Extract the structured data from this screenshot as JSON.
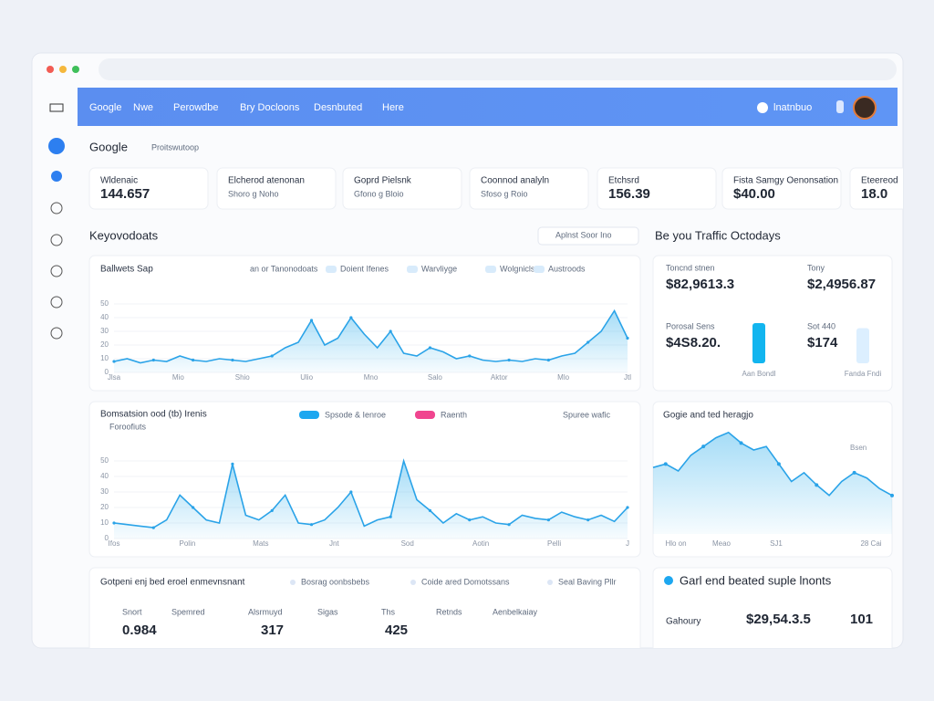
{
  "nav": {
    "brand": "Google",
    "links": [
      "Nwe",
      "Perowdbe",
      "Bry Docloons",
      "Desnbuted",
      "Here"
    ],
    "user": "lnatnbuo"
  },
  "header": {
    "title": "Google",
    "subtitle": "Proitswutoop"
  },
  "kpis": [
    {
      "label": "Wldenaic",
      "value": "144.657"
    },
    {
      "label": "Elcherod atenonan",
      "value": "Shoro g Noho"
    },
    {
      "label": "Goprd Pielsnk",
      "value": "Gfono g Bloio"
    },
    {
      "label": "Coonnod analyln",
      "value": "Sfoso g Roio"
    },
    {
      "label": "Etchsrd",
      "value": "156.39"
    },
    {
      "label": "Fista Samgy Oenonsation",
      "value": "$40.00"
    },
    {
      "label": "Eteereod",
      "value": "18.0"
    }
  ],
  "section": {
    "title": "Keyovodoats",
    "button": "Aplnst Soor Ino",
    "right_title": "Be you Traffic Octodays"
  },
  "chart1": {
    "title": "Ballwets Sap",
    "legend": [
      "an or Tanonodoats",
      "Doient Ifenes",
      "Warvliyge",
      "Wolgnicls",
      "Austroods"
    ],
    "ylim": [
      0,
      60
    ],
    "yticks": [
      0,
      10,
      20,
      30,
      40,
      50
    ],
    "x_labels": [
      "Jlsa",
      "Mio",
      "Shio",
      "Ulio",
      "Mno",
      "Salo",
      "Aktor",
      "Mlo",
      "Jtl"
    ],
    "values": [
      8,
      10,
      7,
      9,
      8,
      12,
      9,
      8,
      10,
      9,
      8,
      10,
      12,
      18,
      22,
      38,
      20,
      25,
      40,
      28,
      18,
      30,
      14,
      12,
      18,
      15,
      10,
      12,
      9,
      8,
      9,
      8,
      10,
      9,
      12,
      14,
      22,
      30,
      45,
      25
    ]
  },
  "chart2": {
    "title": "Bomsatsion ood (tb) Irenis",
    "subtitle": "Foroofiuts",
    "legend": [
      "Spsode & Ienroe",
      "Raenth"
    ],
    "filter": "Spuree wafic",
    "ylim": [
      0,
      60
    ],
    "yticks": [
      0,
      10,
      20,
      30,
      40,
      50
    ],
    "x_labels": [
      "Ifos",
      "Polin",
      "Mats",
      "Jnt",
      "Sod",
      "Aotin",
      "Pelli",
      "J"
    ],
    "values": [
      10,
      9,
      8,
      7,
      12,
      28,
      20,
      12,
      10,
      48,
      15,
      12,
      18,
      28,
      10,
      9,
      12,
      20,
      30,
      8,
      12,
      14,
      50,
      25,
      18,
      10,
      16,
      12,
      14,
      10,
      9,
      15,
      13,
      12,
      17,
      14,
      12,
      15,
      11,
      20
    ]
  },
  "stats": [
    {
      "label": "Toncnd stnen",
      "value": "$82,9613.3"
    },
    {
      "label": "Tony",
      "value": "$2,4956.87"
    },
    {
      "label": "Porosal Sens",
      "value": "$4S8.20."
    },
    {
      "label": "Sot 440",
      "value": "$174"
    }
  ],
  "stat_bars": [
    {
      "label": "Aan Bondl",
      "value": 80
    },
    {
      "label": "Fanda Fndi",
      "value": 70
    }
  ],
  "chart3": {
    "title": "Gogie and ted heragjo",
    "legend": "Bsen",
    "ylim": [
      0,
      60
    ],
    "x_labels": [
      "Hlo on",
      "Meao",
      "SJ1",
      "28 Cai"
    ],
    "values": [
      38,
      40,
      36,
      45,
      50,
      55,
      58,
      52,
      48,
      50,
      40,
      30,
      35,
      28,
      22,
      30,
      35,
      32,
      26,
      22
    ]
  },
  "table": {
    "title": "Gotpeni enj bed eroel enmevnsnant",
    "chips": [
      "Bosrag oonbsbebs",
      "Coide ared Domotssans",
      "Seal Baving Pllr"
    ],
    "headers": [
      "Snort",
      "Spemred",
      "Alsrmuyd",
      "Sigas",
      "Ths",
      "Retnds",
      "Aenbelkaiay"
    ],
    "row": [
      "0.984",
      "317",
      "425"
    ]
  },
  "summary": {
    "title": "Garl end beated suple lnonts",
    "name": "Gahoury",
    "value": "$29,54.3.5",
    "count": "101"
  }
}
